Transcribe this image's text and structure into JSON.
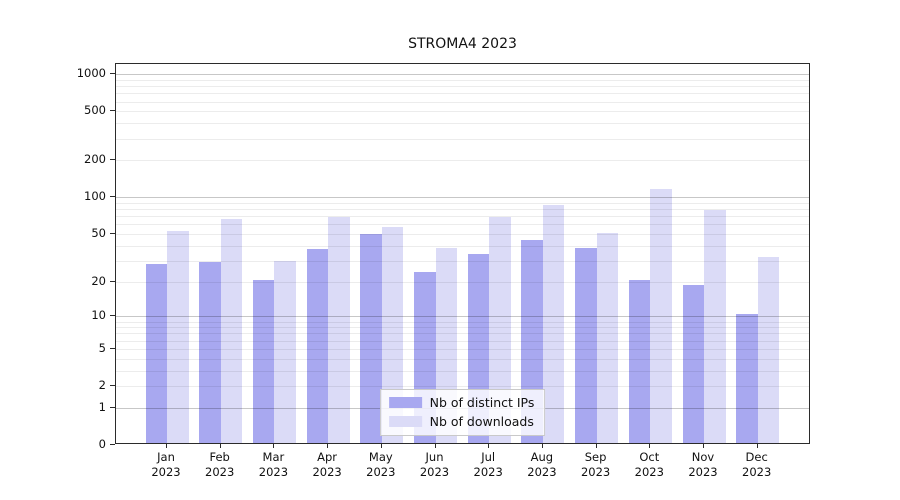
{
  "chart_data": {
    "type": "bar",
    "title": "STROMA4 2023",
    "categories": [
      "Jan 2023",
      "Feb 2023",
      "Mar 2023",
      "Apr 2023",
      "May 2023",
      "Jun 2023",
      "Jul 2023",
      "Aug 2023",
      "Sep 2023",
      "Oct 2023",
      "Nov 2023",
      "Dec 2023"
    ],
    "x_tick_line1": [
      "Jan",
      "Feb",
      "Mar",
      "Apr",
      "May",
      "Jun",
      "Jul",
      "Aug",
      "Sep",
      "Oct",
      "Nov",
      "Dec"
    ],
    "x_tick_line2": "2023",
    "series": [
      {
        "name": "Nb of distinct IPs",
        "color": "#a8a8f0",
        "values": [
          27,
          28,
          20,
          36,
          48,
          23,
          33,
          43,
          37,
          20,
          18,
          10
        ]
      },
      {
        "name": "Nb of downloads",
        "color": "#dbdbf7",
        "values": [
          51,
          64,
          29,
          66,
          55,
          37,
          67,
          84,
          49,
          113,
          76,
          31
        ]
      }
    ],
    "ylabel": "",
    "xlabel": "",
    "yscale": "symlog",
    "yticks": [
      0,
      1,
      2,
      5,
      10,
      20,
      50,
      100,
      200,
      500,
      1000
    ],
    "ytick_labels": [
      "0",
      "1",
      "2",
      "5",
      "10",
      "20",
      "50",
      "100",
      "200",
      "500",
      "1000"
    ],
    "ylim": [
      0,
      1210
    ],
    "grid": true,
    "legend_position": "bottom-center"
  },
  "colors": {
    "bar_distinct_ips": "#a8a8f0",
    "bar_downloads": "#dbdbf7",
    "grid_major": "#c6c6c6",
    "grid_minor": "#ececec",
    "axis": "#2b2b2b",
    "text": "#111111",
    "legend_border": "#c9c9c9"
  }
}
